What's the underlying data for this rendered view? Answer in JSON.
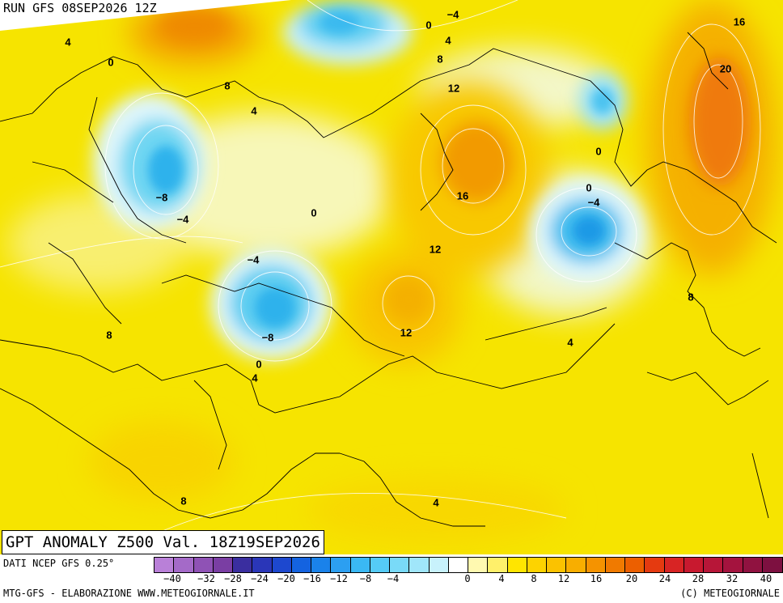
{
  "header": {
    "run": "RUN GFS 08SEP2026 12Z"
  },
  "title": "GPT ANOMALY Z500 Val. 18Z19SEP2026",
  "footer": {
    "data_source": "DATI NCEP GFS 0.25°",
    "credit_left": "MTG-GFS - ELABORAZIONE WWW.METEOGIORNALE.IT",
    "credit_right": "(C) METEOGIORNALE"
  },
  "colors": {
    "background_zero": "#f2f9d0",
    "yellow_light": "#f6ea00",
    "yellow": "#f8d800",
    "gold": "#f6c800",
    "orange": "#f3a400",
    "deep_orange": "#ef7d10",
    "light_blue": "#dff6fb",
    "cyan": "#5fdbf3",
    "blue": "#29b9ee"
  },
  "colorbar": {
    "colors": [
      "#b980d8",
      "#a46ac8",
      "#8f52b5",
      "#7a3ea3",
      "#3a2e9f",
      "#2a36b8",
      "#1d48cf",
      "#1463e0",
      "#1a82ea",
      "#2c9ff1",
      "#3ab8f4",
      "#55cbf6",
      "#79daf8",
      "#a0e6fa",
      "#c8f2fc",
      "#ffffff",
      "#fff9b0",
      "#fff06a",
      "#ffe500",
      "#fdd300",
      "#fbc200",
      "#f8ae00",
      "#f59300",
      "#f07a00",
      "#ec5f00",
      "#e53a10",
      "#d82424",
      "#c8192f",
      "#b71638",
      "#a4133e",
      "#901240",
      "#7d1040"
    ],
    "ticks": [
      "-40",
      "-32",
      "-28",
      "-24",
      "-20",
      "-16",
      "-12",
      "-8",
      "-4",
      "0",
      "4",
      "8",
      "12",
      "16",
      "20",
      "24",
      "28",
      "32",
      "40"
    ]
  },
  "contour_labels": [
    {
      "text": "4"
    },
    {
      "text": "0"
    },
    {
      "text": "8"
    },
    {
      "text": "4"
    },
    {
      "text": "-8"
    },
    {
      "text": "-4"
    },
    {
      "text": "0"
    },
    {
      "text": "-4"
    },
    {
      "text": "-8"
    },
    {
      "text": "0"
    },
    {
      "text": "4"
    },
    {
      "text": "8"
    },
    {
      "text": "8"
    },
    {
      "text": "0"
    },
    {
      "text": "-4"
    },
    {
      "text": "4"
    },
    {
      "text": "8"
    },
    {
      "text": "12"
    },
    {
      "text": "16"
    },
    {
      "text": "12"
    },
    {
      "text": "12"
    },
    {
      "text": "0"
    },
    {
      "text": "0"
    },
    {
      "text": "-4"
    },
    {
      "text": "4"
    },
    {
      "text": "16"
    },
    {
      "text": "20"
    },
    {
      "text": "8"
    },
    {
      "text": "4"
    }
  ]
}
